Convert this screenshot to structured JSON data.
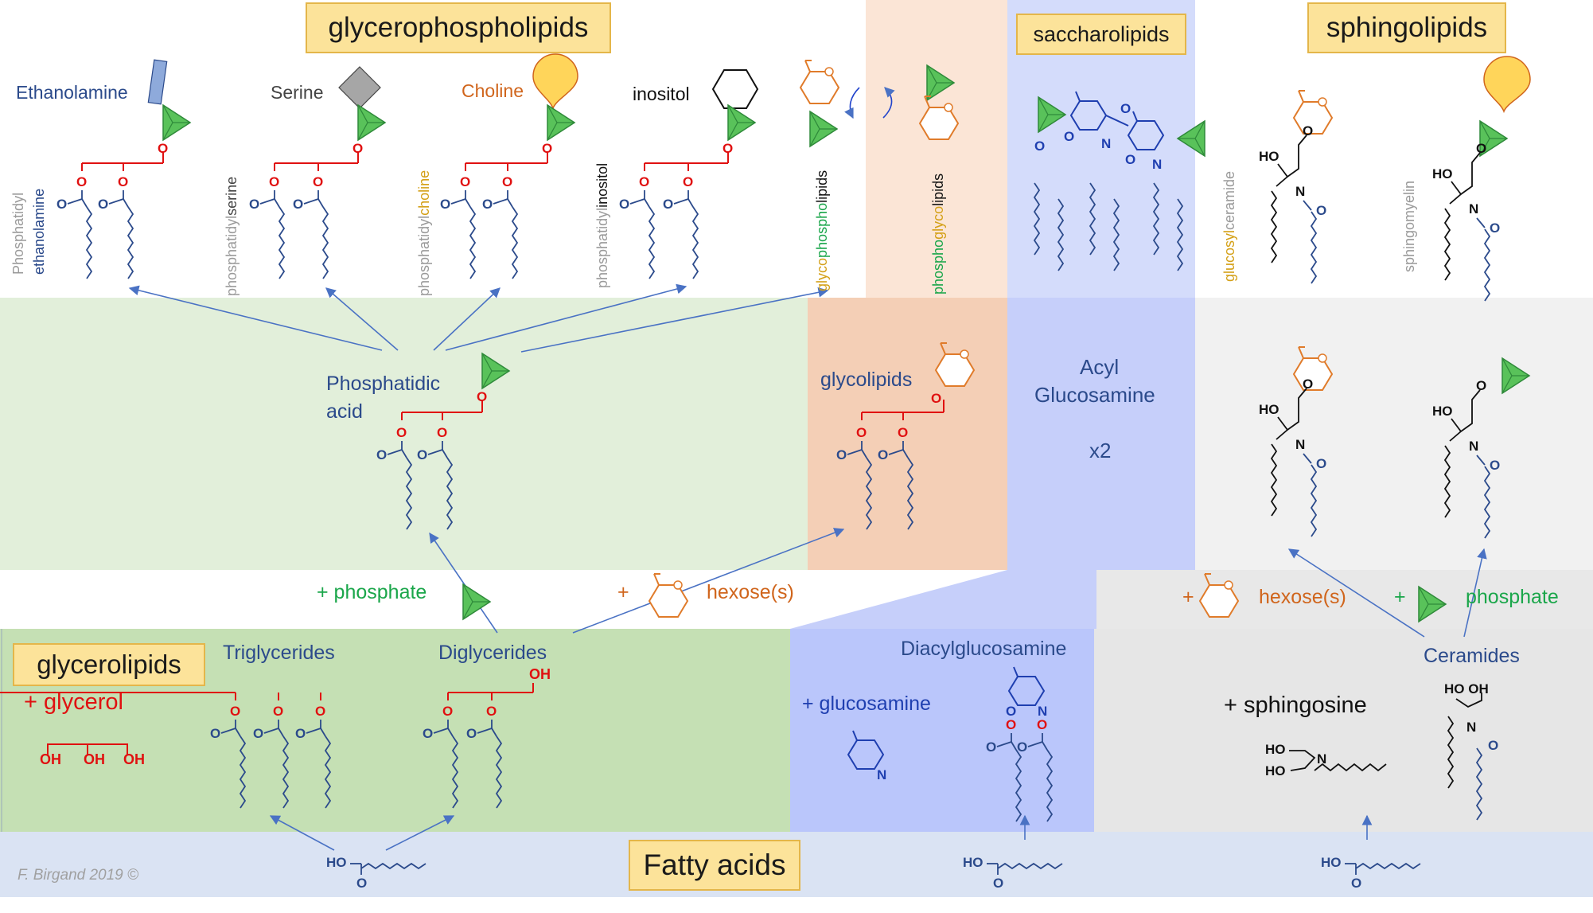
{
  "titles": {
    "glycerophospholipids": "glycerophospholipids",
    "saccharolipids": "saccharolipids",
    "sphingolipids": "sphingolipids",
    "glycerolipids": "glycerolipids",
    "fatty_acids": "Fatty acids"
  },
  "headgroups": {
    "ethanolamine": "Ethanolamine",
    "serine": "Serine",
    "choline": "Choline",
    "inositol": "inositol"
  },
  "vertical_names": {
    "pe_a": "Phosphatidyl",
    "pe_b": "ethanolamine",
    "ps_a": "phosphatidyl",
    "ps_b": "serine",
    "pc_a": "phosphatidyl",
    "pc_b": "choline",
    "pi_a": "phosphatidyl",
    "pi_b": "inositol",
    "gpl_a": "glyco",
    "gpl_b": "phospho",
    "gpl_c": "lipids",
    "pgl_a": "phospho",
    "pgl_b": "glyco",
    "pgl_c": "lipids",
    "glucosyl": "glucosyl",
    "ceramide": "ceramide",
    "sphingomyelin": "sphingomyelin"
  },
  "middle": {
    "phosphatidic_1": "Phosphatidic",
    "phosphatidic_2": "acid",
    "glycolipids": "glycolipids",
    "acyl_1": "Acyl",
    "acyl_2": "Glucosamine",
    "acyl_x2": "x2"
  },
  "reagents": {
    "plus_phosphate": "+ phosphate",
    "plus_1": "+",
    "hexoses": "hexose(s)",
    "plus_2": "+",
    "hexoses_2": "hexose(s)",
    "plus_3": "+",
    "phosphate_2": "phosphate",
    "plus_glycerol": "+ glycerol",
    "plus_glucosamine": "+ glucosamine",
    "plus_sphingosine": "+ sphingosine"
  },
  "bottom": {
    "triglycerides": "Triglycerides",
    "diglycerides": "Diglycerides",
    "diacylglucosamine": "Diacylglucosamine",
    "ceramides": "Ceramides"
  },
  "atoms": {
    "O": "O",
    "N": "N",
    "OH": "OH",
    "HO": "HO",
    "HOOH": "HO OH"
  },
  "credit": "F. Birgand 2019 ©",
  "colors": {
    "blue_text": "#2b4a8b",
    "red_glycerol": "#e01010",
    "orange_sugar": "#e07b2a",
    "green_phosphate": "#3db84a",
    "band_green": "#e2efda",
    "band_glycerolipid": "#c5e0b4",
    "band_orange": "#f4cfb6",
    "band_blue": "#c6cffa",
    "band_grey": "#e8e8e8",
    "band_fatty": "#dae3f3"
  }
}
